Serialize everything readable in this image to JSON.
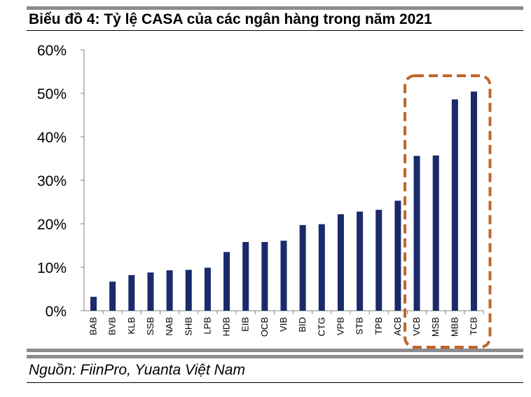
{
  "title": "Biểu đồ 4: Tỷ lệ CASA của các ngân hàng trong năm 2021",
  "source": "Nguồn: FiinPro, Yuanta Việt Nam",
  "colors": {
    "bar": "#1b2a6b",
    "highlight": "#c0652a",
    "rule": "#8c8c8c"
  },
  "chart_data": {
    "type": "bar",
    "title": "Biểu đồ 4: Tỷ lệ CASA của các ngân hàng trong năm 2021",
    "xlabel": "",
    "ylabel": "",
    "ylim": [
      0,
      60
    ],
    "yticks": [
      "0%",
      "10%",
      "20%",
      "30%",
      "40%",
      "50%",
      "60%"
    ],
    "yticks_values": [
      0,
      10,
      20,
      30,
      40,
      50,
      60
    ],
    "grid": false,
    "categories": [
      "BAB",
      "BVB",
      "KLB",
      "SSB",
      "NAB",
      "SHB",
      "LPB",
      "HDB",
      "EIB",
      "OCB",
      "VIB",
      "BID",
      "CTG",
      "VPB",
      "STB",
      "TPB",
      "ACB",
      "VCB",
      "MSB",
      "MBB",
      "TCB"
    ],
    "values": [
      3.2,
      6.7,
      8.2,
      8.8,
      9.3,
      9.4,
      9.9,
      13.5,
      15.8,
      15.8,
      16.1,
      19.7,
      19.9,
      22.2,
      22.8,
      23.2,
      25.3,
      35.6,
      35.7,
      48.6,
      50.4
    ],
    "highlighted_categories": [
      "VCB",
      "MSB",
      "MBB",
      "TCB"
    ]
  }
}
